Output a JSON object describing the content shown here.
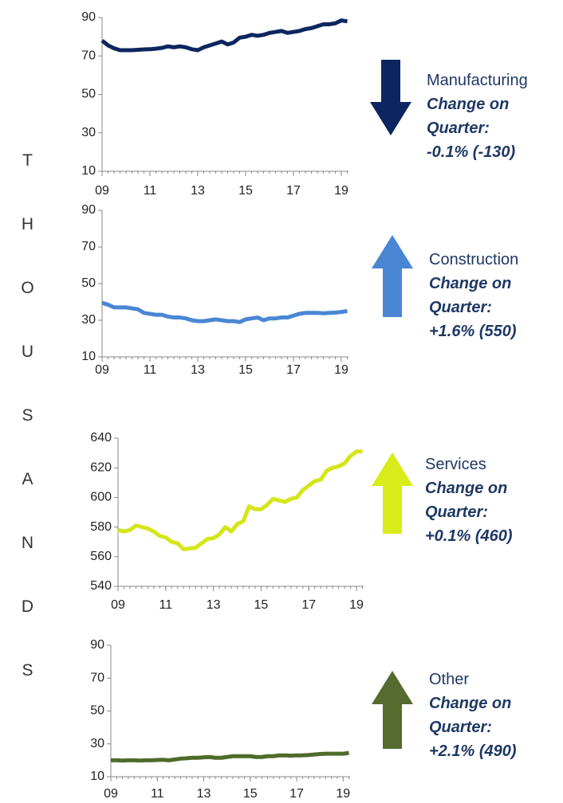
{
  "y_label": "THOUSANDS",
  "chart_data": [
    {
      "type": "line",
      "name": "Manufacturing",
      "change_label": "Change on Quarter:",
      "change": "-0.1% (-130)",
      "arrow": "down",
      "arrow_color": "#0d2660",
      "x": [
        9,
        9.25,
        9.5,
        9.75,
        10,
        10.25,
        10.5,
        10.75,
        11,
        11.25,
        11.5,
        11.75,
        12,
        12.25,
        12.5,
        12.75,
        13,
        13.25,
        13.5,
        13.75,
        14,
        14.25,
        14.5,
        14.75,
        15,
        15.25,
        15.5,
        15.75,
        16,
        16.25,
        16.5,
        16.75,
        17,
        17.25,
        17.5,
        17.75,
        18,
        18.25,
        18.5,
        18.75,
        19,
        19.25
      ],
      "values": [
        78,
        75.5,
        74,
        73,
        73,
        73,
        73.2,
        73.4,
        73.5,
        73.8,
        74.2,
        75,
        74.5,
        75,
        74.5,
        73.5,
        73,
        74.5,
        75.5,
        76.5,
        77.5,
        76,
        77,
        79.5,
        80,
        81,
        80.5,
        81,
        82,
        82.5,
        83,
        82,
        82.5,
        83,
        84,
        84.5,
        85.5,
        86.5,
        86.5,
        87,
        88.5,
        88
      ],
      "color": "#0d2660",
      "xlim": [
        9,
        19.3
      ],
      "xticks": [
        {
          "value": 9,
          "label": "09"
        },
        11,
        13,
        15,
        17,
        19
      ],
      "ylim": [
        10,
        90
      ],
      "yticks": [
        10,
        30,
        50,
        70,
        90
      ]
    },
    {
      "type": "line",
      "name": "Construction",
      "change_label": "Change on Quarter:",
      "change": "+1.6% (550)",
      "arrow": "up",
      "arrow_color": "#4a86d4",
      "x": [
        9,
        9.25,
        9.5,
        9.75,
        10,
        10.25,
        10.5,
        10.75,
        11,
        11.25,
        11.5,
        11.75,
        12,
        12.25,
        12.5,
        12.75,
        13,
        13.25,
        13.5,
        13.75,
        14,
        14.25,
        14.5,
        14.75,
        15,
        15.25,
        15.5,
        15.75,
        16,
        16.25,
        16.5,
        16.75,
        17,
        17.25,
        17.5,
        17.75,
        18,
        18.25,
        18.5,
        18.75,
        19,
        19.25
      ],
      "values": [
        39.5,
        38.5,
        37,
        37,
        37,
        36.5,
        36,
        34,
        33.5,
        33,
        33,
        32,
        31.5,
        31.5,
        31,
        30,
        29.5,
        29.5,
        30,
        30.5,
        30,
        29.5,
        29.5,
        29,
        30.5,
        31,
        31.5,
        30,
        31,
        31,
        31.5,
        31.5,
        32.5,
        33.5,
        34,
        34,
        34,
        33.8,
        34,
        34.2,
        34.5,
        35
      ],
      "color": "#4a86d4",
      "xlim": [
        9,
        19.3
      ],
      "xticks": [
        {
          "value": 9,
          "label": "09"
        },
        11,
        13,
        15,
        17,
        19
      ],
      "ylim": [
        10,
        90
      ],
      "yticks": [
        10,
        30,
        50,
        70,
        90
      ]
    },
    {
      "type": "line",
      "name": "Services",
      "change_label": "Change on Quarter:",
      "change": "+0.1% (460)",
      "arrow": "up",
      "arrow_color": "#d8ec1a",
      "x": [
        9,
        9.25,
        9.5,
        9.75,
        10,
        10.25,
        10.5,
        10.75,
        11,
        11.25,
        11.5,
        11.75,
        12,
        12.25,
        12.5,
        12.75,
        13,
        13.25,
        13.5,
        13.75,
        14,
        14.25,
        14.5,
        14.75,
        15,
        15.25,
        15.5,
        15.75,
        16,
        16.25,
        16.5,
        16.75,
        17,
        17.25,
        17.5,
        17.75,
        18,
        18.25,
        18.5,
        18.75,
        19,
        19.25
      ],
      "values": [
        578,
        577,
        578,
        581,
        580,
        579,
        577,
        574,
        573,
        570,
        569,
        565,
        565.5,
        566,
        569,
        572,
        572.5,
        575,
        580,
        577,
        582,
        584,
        594,
        592,
        592,
        595,
        599,
        598,
        597,
        599,
        600,
        605,
        608,
        611,
        612,
        618,
        620,
        621,
        623,
        628,
        631,
        631
      ],
      "color": "#d4e619",
      "xlim": [
        9,
        19.3
      ],
      "xticks": [
        {
          "value": 9,
          "label": "09"
        },
        11,
        13,
        15,
        17,
        19
      ],
      "ylim": [
        540,
        640
      ],
      "yticks": [
        540,
        560,
        580,
        600,
        620,
        640
      ]
    },
    {
      "type": "line",
      "name": "Other",
      "change_label": "Change on Quarter:",
      "change": "+2.1% (490)",
      "arrow": "up",
      "arrow_color": "#556b2f",
      "x": [
        9,
        9.25,
        9.5,
        9.75,
        10,
        10.25,
        10.5,
        10.75,
        11,
        11.25,
        11.5,
        11.75,
        12,
        12.25,
        12.5,
        12.75,
        13,
        13.25,
        13.5,
        13.75,
        14,
        14.25,
        14.5,
        14.75,
        15,
        15.25,
        15.5,
        15.75,
        16,
        16.25,
        16.5,
        16.75,
        17,
        17.25,
        17.5,
        17.75,
        18,
        18.25,
        18.5,
        18.75,
        19,
        19.25
      ],
      "values": [
        20,
        20,
        19.8,
        20,
        20,
        19.8,
        20,
        20,
        20.2,
        20.3,
        20,
        20.5,
        21,
        21.2,
        21.5,
        21.5,
        21.8,
        22,
        21.5,
        21.5,
        22,
        22.5,
        22.5,
        22.5,
        22.5,
        22,
        22,
        22.5,
        22.5,
        23,
        23,
        22.8,
        23,
        23,
        23.2,
        23.5,
        23.8,
        24,
        24,
        24,
        24,
        24.5
      ],
      "color": "#4f6b2a",
      "xlim": [
        9,
        19.3
      ],
      "xticks": [
        {
          "value": 9,
          "label": "09"
        },
        11,
        13,
        15,
        17,
        19
      ],
      "ylim": [
        10,
        90
      ],
      "yticks": [
        10,
        30,
        50,
        70,
        90
      ]
    }
  ]
}
